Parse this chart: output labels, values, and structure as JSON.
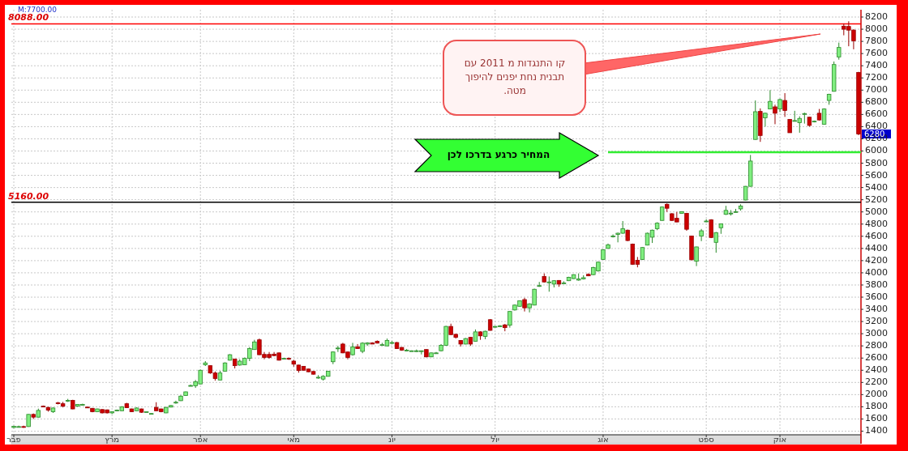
{
  "chart_data": {
    "type": "candlestick",
    "categories": [
      "פבר",
      null,
      null,
      null,
      null,
      null,
      null,
      null,
      null,
      null,
      null,
      null,
      null,
      null,
      null,
      null,
      null,
      null,
      null,
      null,
      "מרץ",
      null,
      null,
      null,
      null,
      null,
      null,
      null,
      null,
      null,
      null,
      null,
      null,
      null,
      null,
      null,
      null,
      null,
      "אפר",
      null,
      null,
      null,
      null,
      null,
      null,
      null,
      null,
      null,
      null,
      null,
      null,
      null,
      null,
      null,
      null,
      null,
      null,
      "מאי",
      null,
      null,
      null,
      null,
      null,
      null,
      null,
      null,
      null,
      null,
      null,
      null,
      null,
      null,
      null,
      null,
      null,
      null,
      null,
      "יונ",
      null,
      null,
      null,
      null,
      null,
      null,
      null,
      null,
      null,
      null,
      null,
      null,
      null,
      null,
      null,
      null,
      null,
      null,
      null,
      null,
      "יול",
      null,
      null,
      null,
      null,
      null,
      null,
      null,
      null,
      null,
      null,
      null,
      null,
      null,
      null,
      null,
      null,
      null,
      null,
      null,
      null,
      null,
      "אוג",
      null,
      null,
      null,
      null,
      null,
      null,
      null,
      null,
      null,
      null,
      null,
      null,
      null,
      null,
      null,
      null,
      null,
      null,
      null,
      null,
      "ספט",
      null,
      null,
      null,
      null,
      null,
      null,
      null,
      null,
      null,
      null,
      null,
      null,
      null,
      null,
      "אוק",
      null,
      null,
      null,
      null,
      null,
      null,
      null,
      null,
      null,
      null,
      null,
      null,
      null,
      null,
      null,
      null
    ],
    "ohlc": [
      [
        1460,
        1490,
        1450,
        1480
      ],
      [
        1470,
        1490,
        1460,
        1475
      ],
      [
        1475,
        1490,
        1455,
        1470
      ],
      [
        1475,
        1680,
        1470,
        1675
      ],
      [
        1675,
        1690,
        1600,
        1630
      ],
      [
        1630,
        1770,
        1625,
        1740
      ],
      [
        1810,
        1820,
        1795,
        1800
      ],
      [
        1790,
        1800,
        1720,
        1745
      ],
      [
        1720,
        1790,
        1700,
        1780
      ],
      [
        1865,
        1880,
        1840,
        1860
      ],
      [
        1850,
        1880,
        1790,
        1810
      ],
      [
        1900,
        1930,
        1880,
        1905
      ],
      [
        1905,
        1915,
        1760,
        1765
      ],
      [
        1810,
        1845,
        1800,
        1840
      ],
      [
        1835,
        1850,
        1825,
        1840
      ],
      [
        1795,
        1800,
        1780,
        1790
      ],
      [
        1775,
        1780,
        1710,
        1720
      ],
      [
        1720,
        1770,
        1715,
        1765
      ],
      [
        1755,
        1760,
        1690,
        1700
      ],
      [
        1750,
        1755,
        1690,
        1700
      ],
      [
        1700,
        1725,
        1680,
        1720
      ],
      [
        1740,
        1755,
        1730,
        1745
      ],
      [
        1735,
        1810,
        1730,
        1800
      ],
      [
        1850,
        1865,
        1780,
        1785
      ],
      [
        1765,
        1770,
        1715,
        1720
      ],
      [
        1735,
        1790,
        1730,
        1780
      ],
      [
        1765,
        1770,
        1700,
        1710
      ],
      [
        1720,
        1725,
        1715,
        1720
      ],
      [
        1690,
        1695,
        1685,
        1690
      ],
      [
        1790,
        1875,
        1730,
        1735
      ],
      [
        1765,
        1770,
        1710,
        1720
      ],
      [
        1700,
        1800,
        1695,
        1790
      ],
      [
        1795,
        1830,
        1790,
        1820
      ],
      [
        1870,
        1900,
        1850,
        1875
      ],
      [
        1900,
        1990,
        1895,
        1975
      ],
      [
        1985,
        2050,
        1980,
        2045
      ],
      [
        2145,
        2165,
        2140,
        2150
      ],
      [
        2145,
        2240,
        2110,
        2210
      ],
      [
        2175,
        2410,
        2170,
        2400
      ],
      [
        2490,
        2550,
        2470,
        2520
      ],
      [
        2475,
        2480,
        2340,
        2355
      ],
      [
        2355,
        2380,
        2230,
        2265
      ],
      [
        2240,
        2390,
        2235,
        2355
      ],
      [
        2385,
        2530,
        2380,
        2520
      ],
      [
        2565,
        2665,
        2560,
        2655
      ],
      [
        2585,
        2590,
        2430,
        2475
      ],
      [
        2485,
        2580,
        2475,
        2550
      ],
      [
        2490,
        2610,
        2485,
        2595
      ],
      [
        2595,
        2780,
        2550,
        2755
      ],
      [
        2740,
        2900,
        2735,
        2865
      ],
      [
        2900,
        2920,
        2650,
        2655
      ],
      [
        2660,
        2700,
        2580,
        2610
      ],
      [
        2660,
        2700,
        2590,
        2610
      ],
      [
        2665,
        2700,
        2630,
        2640
      ],
      [
        2685,
        2690,
        2560,
        2565
      ],
      [
        2595,
        2605,
        2580,
        2595
      ],
      [
        2595,
        2610,
        2570,
        2590
      ],
      [
        2550,
        2570,
        2460,
        2500
      ],
      [
        2485,
        2490,
        2360,
        2395
      ],
      [
        2465,
        2470,
        2395,
        2400
      ],
      [
        2420,
        2425,
        2370,
        2375
      ],
      [
        2380,
        2385,
        2330,
        2335
      ],
      [
        2285,
        2320,
        2260,
        2285
      ],
      [
        2255,
        2320,
        2230,
        2300
      ],
      [
        2300,
        2390,
        2295,
        2385
      ],
      [
        2540,
        2710,
        2500,
        2700
      ],
      [
        2765,
        2800,
        2700,
        2765
      ],
      [
        2830,
        2850,
        2680,
        2685
      ],
      [
        2700,
        2705,
        2580,
        2610
      ],
      [
        2655,
        2850,
        2640,
        2785
      ],
      [
        2785,
        2830,
        2750,
        2755
      ],
      [
        2710,
        2860,
        2680,
        2845
      ],
      [
        2830,
        2860,
        2800,
        2850
      ],
      [
        2850,
        2860,
        2830,
        2830
      ],
      [
        2875,
        2890,
        2840,
        2845
      ],
      [
        2820,
        2850,
        2800,
        2820
      ],
      [
        2800,
        2920,
        2795,
        2890
      ],
      [
        2855,
        2880,
        2830,
        2855
      ],
      [
        2855,
        2865,
        2750,
        2755
      ],
      [
        2775,
        2780,
        2720,
        2730
      ],
      [
        2730,
        2750,
        2710,
        2730
      ],
      [
        2720,
        2725,
        2715,
        2720
      ],
      [
        2720,
        2740,
        2700,
        2720
      ],
      [
        2720,
        2725,
        2660,
        2720
      ],
      [
        2740,
        2745,
        2610,
        2620
      ],
      [
        2620,
        2690,
        2615,
        2685
      ],
      [
        2685,
        2700,
        2670,
        2685
      ],
      [
        2720,
        2830,
        2710,
        2810
      ],
      [
        2810,
        3130,
        2800,
        3120
      ],
      [
        3120,
        3165,
        2980,
        2985
      ],
      [
        2990,
        3000,
        2920,
        2940
      ],
      [
        2890,
        2895,
        2790,
        2830
      ],
      [
        2830,
        2930,
        2825,
        2920
      ],
      [
        2940,
        2945,
        2800,
        2830
      ],
      [
        2875,
        3070,
        2870,
        3030
      ],
      [
        3030,
        3040,
        2900,
        2965
      ],
      [
        2955,
        3050,
        2910,
        3040
      ],
      [
        3230,
        3240,
        3050,
        3055
      ],
      [
        3120,
        3130,
        3100,
        3120
      ],
      [
        3130,
        3140,
        3110,
        3130
      ],
      [
        3145,
        3160,
        3040,
        3100
      ],
      [
        3140,
        3370,
        3100,
        3365
      ],
      [
        3390,
        3480,
        3380,
        3470
      ],
      [
        3450,
        3545,
        3445,
        3540
      ],
      [
        3560,
        3590,
        3365,
        3425
      ],
      [
        3425,
        3500,
        3350,
        3490
      ],
      [
        3470,
        3740,
        3465,
        3730
      ],
      [
        3785,
        3850,
        3770,
        3790
      ],
      [
        3940,
        3990,
        3840,
        3850
      ],
      [
        3850,
        3940,
        3690,
        3850
      ],
      [
        3815,
        3880,
        3760,
        3870
      ],
      [
        3875,
        3880,
        3770,
        3815
      ],
      [
        3835,
        3860,
        3820,
        3835
      ],
      [
        3870,
        3935,
        3865,
        3925
      ],
      [
        3905,
        3975,
        3900,
        3970
      ],
      [
        3880,
        3990,
        3870,
        3900
      ],
      [
        3900,
        3960,
        3890,
        3920
      ],
      [
        3975,
        3990,
        3945,
        3950
      ],
      [
        3970,
        4100,
        3960,
        4085
      ],
      [
        4030,
        4185,
        4020,
        4175
      ],
      [
        4220,
        4390,
        4215,
        4380
      ],
      [
        4400,
        4480,
        4395,
        4460
      ],
      [
        4605,
        4630,
        4580,
        4605
      ],
      [
        4630,
        4660,
        4500,
        4650
      ],
      [
        4650,
        4850,
        4640,
        4725
      ],
      [
        4700,
        4710,
        4520,
        4530
      ],
      [
        4470,
        4480,
        4130,
        4140
      ],
      [
        4205,
        4260,
        4090,
        4140
      ],
      [
        4220,
        4420,
        4210,
        4415
      ],
      [
        4455,
        4660,
        4450,
        4650
      ],
      [
        4585,
        4710,
        4490,
        4700
      ],
      [
        4725,
        4830,
        4700,
        4815
      ],
      [
        4860,
        5090,
        4855,
        5080
      ],
      [
        5125,
        5140,
        5000,
        5060
      ],
      [
        4970,
        4980,
        4850,
        4860
      ],
      [
        4895,
        5000,
        4830,
        4835
      ],
      [
        4975,
        5010,
        4970,
        5005
      ],
      [
        4975,
        4980,
        4690,
        4715
      ],
      [
        4605,
        4610,
        4200,
        4215
      ],
      [
        4190,
        4430,
        4110,
        4425
      ],
      [
        4605,
        4720,
        4520,
        4690
      ],
      [
        4850,
        4880,
        4830,
        4850
      ],
      [
        4870,
        4880,
        4570,
        4580
      ],
      [
        4500,
        4670,
        4330,
        4660
      ],
      [
        4740,
        4810,
        4640,
        4805
      ],
      [
        4960,
        5100,
        4950,
        5025
      ],
      [
        4980,
        5030,
        4940,
        4980
      ],
      [
        5005,
        5050,
        4990,
        5005
      ],
      [
        5050,
        5125,
        5020,
        5095
      ],
      [
        5195,
        5425,
        5190,
        5420
      ],
      [
        5420,
        5935,
        5415,
        5835
      ],
      [
        6190,
        6830,
        6185,
        6645
      ],
      [
        6650,
        6700,
        6150,
        6255
      ],
      [
        6545,
        6630,
        6400,
        6620
      ],
      [
        6690,
        7000,
        6685,
        6815
      ],
      [
        6725,
        6760,
        6440,
        6620
      ],
      [
        6690,
        6860,
        6640,
        6845
      ],
      [
        6830,
        6950,
        6560,
        6665
      ],
      [
        6520,
        6525,
        6300,
        6300
      ],
      [
        6500,
        6660,
        6490,
        6500
      ],
      [
        6465,
        6570,
        6300,
        6535
      ],
      [
        6615,
        6630,
        6450,
        6615
      ],
      [
        6555,
        6560,
        6400,
        6420
      ],
      [
        6490,
        6500,
        6470,
        6490
      ],
      [
        6620,
        6690,
        6500,
        6510
      ],
      [
        6440,
        6700,
        6435,
        6690
      ],
      [
        6830,
        6940,
        6760,
        6930
      ],
      [
        6980,
        7470,
        6975,
        7420
      ],
      [
        7545,
        7780,
        7500,
        7700
      ],
      [
        8050,
        8090,
        7900,
        8000
      ],
      [
        8045,
        8130,
        7720,
        7985
      ],
      [
        7985,
        8000,
        7670,
        7810
      ],
      [
        7290,
        7300,
        6260,
        6280
      ]
    ],
    "ylim": [
      1340,
      8320
    ],
    "yticks": [
      1400,
      1600,
      1800,
      2000,
      2200,
      2400,
      2600,
      2800,
      3000,
      3200,
      3400,
      3600,
      3800,
      4000,
      4200,
      4400,
      4600,
      4800,
      5000,
      5200,
      5400,
      5600,
      5800,
      6000,
      6200,
      6400,
      6600,
      6800,
      7000,
      7200,
      7400,
      7600,
      7800,
      8000,
      8200
    ],
    "grid": true,
    "ref_lines": [
      {
        "axis": "y",
        "value": 8088,
        "label": "8088.00",
        "color": "#ff0000"
      },
      {
        "axis": "y",
        "value": 5160,
        "label": "5160.00",
        "color": "#000000"
      },
      {
        "axis": "y",
        "value": 5980,
        "color": "#33ee33"
      }
    ],
    "annotations": [
      "M:7700.00",
      "קו התנגדות מ 2011 עם תבנית  נחת יפנים להיפוך מטה.",
      "המחיר כרגע  בדרכו לכן",
      "6280"
    ]
  }
}
